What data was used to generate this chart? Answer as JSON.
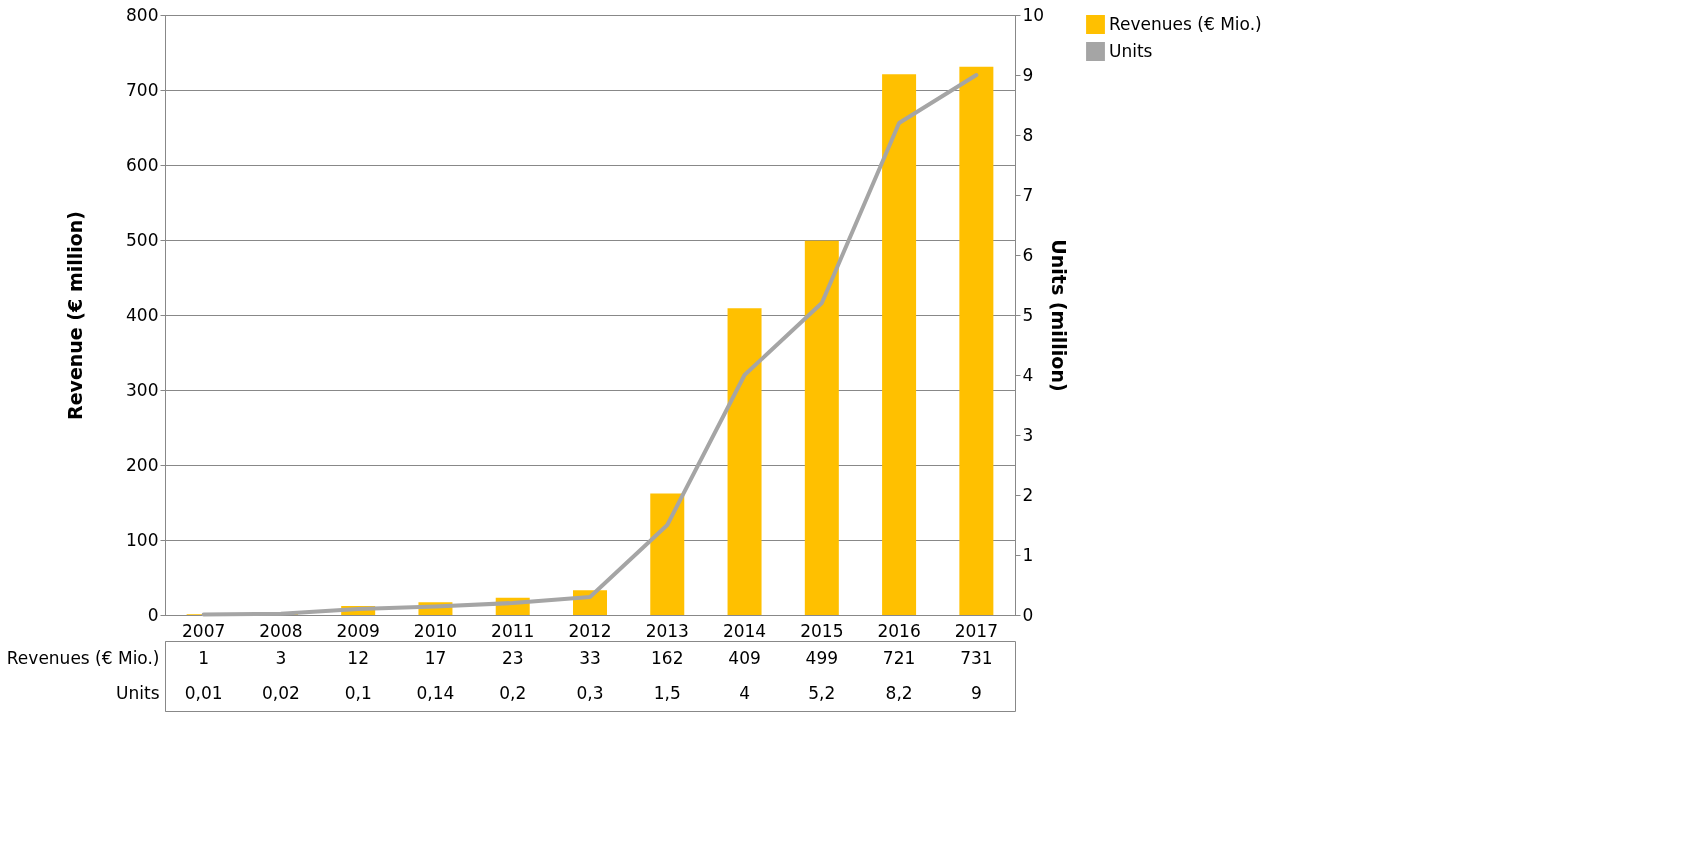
{
  "chart_data": {
    "type": "bar",
    "categories": [
      "2007",
      "2008",
      "2009",
      "2010",
      "2011",
      "2012",
      "2013",
      "2014",
      "2015",
      "2016",
      "2017"
    ],
    "ylabel": "Revenue (€ million)",
    "y2label": "Units (million)",
    "ylim": [
      0,
      800
    ],
    "yticks": [
      0,
      100,
      200,
      300,
      400,
      500,
      600,
      700,
      800
    ],
    "y2lim": [
      0,
      10
    ],
    "y2ticks": [
      0,
      1,
      2,
      3,
      4,
      5,
      6,
      7,
      8,
      9,
      10
    ],
    "grid": "y",
    "legend": "right",
    "series": [
      {
        "name": "Revenues (€ Mio.)",
        "color": "#ffc000",
        "values": [
          1,
          3,
          12,
          17,
          23,
          33,
          162,
          409,
          499,
          721,
          731
        ],
        "value_labels": [
          "1",
          "3",
          "12",
          "17",
          "23",
          "33",
          "162",
          "409",
          "499",
          "721",
          "731"
        ]
      },
      {
        "name": "Units",
        "type": "line",
        "axis": "y2",
        "color": "#a5a5a5",
        "values": [
          0.01,
          0.02,
          0.1,
          0.14,
          0.2,
          0.3,
          1.5,
          4,
          5.2,
          8.2,
          9
        ],
        "value_labels": [
          "0,01",
          "0,02",
          "0,1",
          "0,14",
          "0,2",
          "0,3",
          "1,5",
          "4",
          "5,2",
          "8,2",
          "9"
        ]
      }
    ]
  }
}
